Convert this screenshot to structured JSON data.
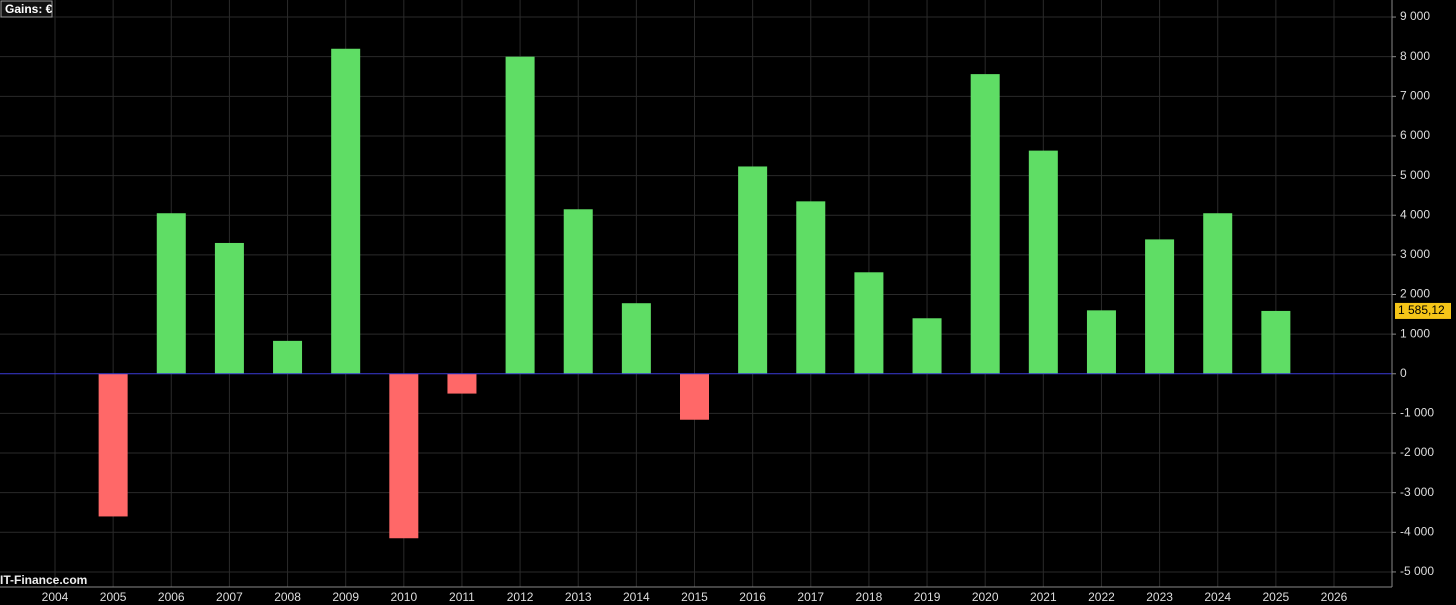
{
  "chart_data": {
    "type": "bar",
    "title": "Gains: €",
    "watermark": "IT-Finance.com",
    "categories": [
      "2004",
      "2005",
      "2006",
      "2007",
      "2008",
      "2009",
      "2010",
      "2011",
      "2012",
      "2013",
      "2014",
      "2015",
      "2016",
      "2017",
      "2018",
      "2019",
      "2020",
      "2021",
      "2022",
      "2023",
      "2024",
      "2025",
      "2026"
    ],
    "values": [
      null,
      -3600,
      4050,
      3300,
      830,
      8200,
      -4150,
      -500,
      8000,
      4150,
      1780,
      -1160,
      5230,
      4350,
      2560,
      1400,
      7560,
      5630,
      1600,
      3390,
      4050,
      1585.12,
      null
    ],
    "positive_color": "#5fdd65",
    "negative_color": "#ff6868",
    "zero_line_color": "#3a3ad8",
    "current_value": {
      "value": 1585.12,
      "label": "1 585,12"
    },
    "ylim": [
      -5380,
      9430
    ],
    "yticks": [
      {
        "value": -5000,
        "label": "-5 000"
      },
      {
        "value": -4000,
        "label": "-4 000"
      },
      {
        "value": -3000,
        "label": "-3 000"
      },
      {
        "value": -2000,
        "label": "-2 000"
      },
      {
        "value": -1000,
        "label": "-1 000"
      },
      0,
      {
        "value": 1000,
        "label": "1 000"
      },
      {
        "value": 2000,
        "label": "2 000"
      },
      {
        "value": 3000,
        "label": "3 000"
      },
      {
        "value": 4000,
        "label": "4 000"
      },
      {
        "value": 5000,
        "label": "5 000"
      },
      {
        "value": 6000,
        "label": "6 000"
      },
      {
        "value": 7000,
        "label": "7 000"
      },
      {
        "value": 8000,
        "label": "8 000"
      },
      {
        "value": 9000,
        "label": "9 000"
      }
    ],
    "grid": true,
    "y_axis_side": "right"
  }
}
